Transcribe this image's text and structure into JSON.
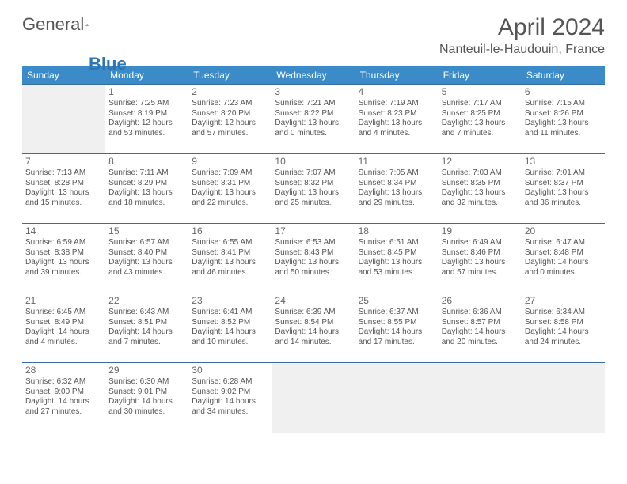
{
  "brand": {
    "part1": "General",
    "part2": "Blue"
  },
  "title": "April 2024",
  "location": "Nanteuil-le-Haudouin, France",
  "colors": {
    "header_bg": "#3b8bc8",
    "header_text": "#ffffff",
    "cell_border": "#3b6ea0",
    "empty_bg": "#f0f0f0",
    "text": "#555555",
    "logo_blue": "#2e75b6"
  },
  "weekdays": [
    "Sunday",
    "Monday",
    "Tuesday",
    "Wednesday",
    "Thursday",
    "Friday",
    "Saturday"
  ],
  "layout": {
    "first_weekday_index": 1,
    "days_in_month": 30
  },
  "days": {
    "1": {
      "sunrise": "7:25 AM",
      "sunset": "8:19 PM",
      "daylight": "12 hours and 53 minutes."
    },
    "2": {
      "sunrise": "7:23 AM",
      "sunset": "8:20 PM",
      "daylight": "12 hours and 57 minutes."
    },
    "3": {
      "sunrise": "7:21 AM",
      "sunset": "8:22 PM",
      "daylight": "13 hours and 0 minutes."
    },
    "4": {
      "sunrise": "7:19 AM",
      "sunset": "8:23 PM",
      "daylight": "13 hours and 4 minutes."
    },
    "5": {
      "sunrise": "7:17 AM",
      "sunset": "8:25 PM",
      "daylight": "13 hours and 7 minutes."
    },
    "6": {
      "sunrise": "7:15 AM",
      "sunset": "8:26 PM",
      "daylight": "13 hours and 11 minutes."
    },
    "7": {
      "sunrise": "7:13 AM",
      "sunset": "8:28 PM",
      "daylight": "13 hours and 15 minutes."
    },
    "8": {
      "sunrise": "7:11 AM",
      "sunset": "8:29 PM",
      "daylight": "13 hours and 18 minutes."
    },
    "9": {
      "sunrise": "7:09 AM",
      "sunset": "8:31 PM",
      "daylight": "13 hours and 22 minutes."
    },
    "10": {
      "sunrise": "7:07 AM",
      "sunset": "8:32 PM",
      "daylight": "13 hours and 25 minutes."
    },
    "11": {
      "sunrise": "7:05 AM",
      "sunset": "8:34 PM",
      "daylight": "13 hours and 29 minutes."
    },
    "12": {
      "sunrise": "7:03 AM",
      "sunset": "8:35 PM",
      "daylight": "13 hours and 32 minutes."
    },
    "13": {
      "sunrise": "7:01 AM",
      "sunset": "8:37 PM",
      "daylight": "13 hours and 36 minutes."
    },
    "14": {
      "sunrise": "6:59 AM",
      "sunset": "8:38 PM",
      "daylight": "13 hours and 39 minutes."
    },
    "15": {
      "sunrise": "6:57 AM",
      "sunset": "8:40 PM",
      "daylight": "13 hours and 43 minutes."
    },
    "16": {
      "sunrise": "6:55 AM",
      "sunset": "8:41 PM",
      "daylight": "13 hours and 46 minutes."
    },
    "17": {
      "sunrise": "6:53 AM",
      "sunset": "8:43 PM",
      "daylight": "13 hours and 50 minutes."
    },
    "18": {
      "sunrise": "6:51 AM",
      "sunset": "8:45 PM",
      "daylight": "13 hours and 53 minutes."
    },
    "19": {
      "sunrise": "6:49 AM",
      "sunset": "8:46 PM",
      "daylight": "13 hours and 57 minutes."
    },
    "20": {
      "sunrise": "6:47 AM",
      "sunset": "8:48 PM",
      "daylight": "14 hours and 0 minutes."
    },
    "21": {
      "sunrise": "6:45 AM",
      "sunset": "8:49 PM",
      "daylight": "14 hours and 4 minutes."
    },
    "22": {
      "sunrise": "6:43 AM",
      "sunset": "8:51 PM",
      "daylight": "14 hours and 7 minutes."
    },
    "23": {
      "sunrise": "6:41 AM",
      "sunset": "8:52 PM",
      "daylight": "14 hours and 10 minutes."
    },
    "24": {
      "sunrise": "6:39 AM",
      "sunset": "8:54 PM",
      "daylight": "14 hours and 14 minutes."
    },
    "25": {
      "sunrise": "6:37 AM",
      "sunset": "8:55 PM",
      "daylight": "14 hours and 17 minutes."
    },
    "26": {
      "sunrise": "6:36 AM",
      "sunset": "8:57 PM",
      "daylight": "14 hours and 20 minutes."
    },
    "27": {
      "sunrise": "6:34 AM",
      "sunset": "8:58 PM",
      "daylight": "14 hours and 24 minutes."
    },
    "28": {
      "sunrise": "6:32 AM",
      "sunset": "9:00 PM",
      "daylight": "14 hours and 27 minutes."
    },
    "29": {
      "sunrise": "6:30 AM",
      "sunset": "9:01 PM",
      "daylight": "14 hours and 30 minutes."
    },
    "30": {
      "sunrise": "6:28 AM",
      "sunset": "9:02 PM",
      "daylight": "14 hours and 34 minutes."
    }
  },
  "labels": {
    "sunrise": "Sunrise: ",
    "sunset": "Sunset: ",
    "daylight": "Daylight: "
  }
}
